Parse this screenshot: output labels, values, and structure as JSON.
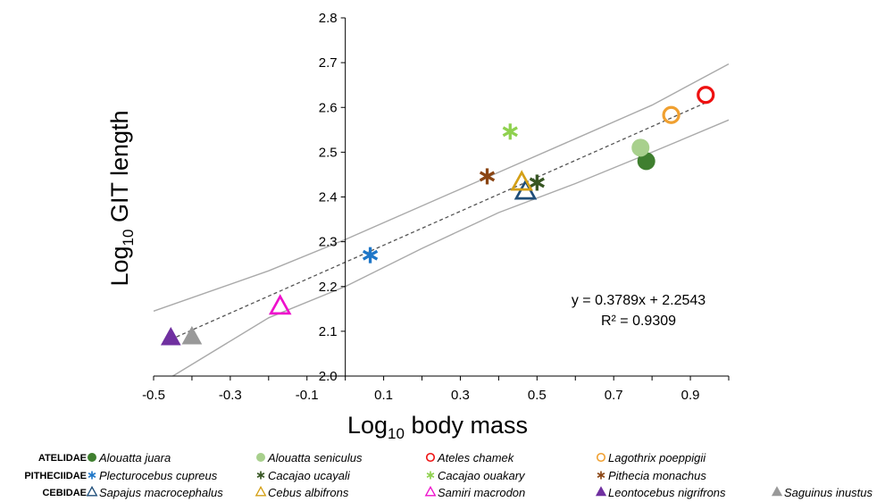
{
  "chart_data": {
    "type": "scatter",
    "xlabel": "Log10 body mass",
    "ylabel": "Log10 GIT length",
    "xlabel_parts": {
      "base": "Log",
      "sub": "10",
      "rest": " body mass"
    },
    "ylabel_parts": {
      "base": "Log",
      "sub": "10",
      "rest": " GIT length"
    },
    "xlim": [
      -0.5,
      1.0
    ],
    "ylim": [
      2.0,
      2.8
    ],
    "x_ticks": [
      -0.5,
      -0.3,
      -0.1,
      0.1,
      0.3,
      0.5,
      0.7,
      0.9
    ],
    "x_tick_labels": [
      "-0.5",
      "-0.3",
      "-0.1",
      "0.1",
      "0.3",
      "0.5",
      "0.7",
      "0.9"
    ],
    "y_ticks": [
      2.0,
      2.1,
      2.2,
      2.3,
      2.4,
      2.5,
      2.6,
      2.7,
      2.8
    ],
    "y_tick_labels": [
      "2.0",
      "2.1",
      "2.2",
      "2.3",
      "2.4",
      "2.5",
      "2.6",
      "2.7",
      "2.8"
    ],
    "axis_crossing_x": 0.0,
    "grid": false,
    "legend_position": "bottom",
    "regression": {
      "slope": 0.3789,
      "intercept": 2.2543,
      "equation_label": "y = 0.3789x + 2.2543",
      "r2_label": "R² = 0.9309",
      "line_style": "dashed",
      "color": "#555555"
    },
    "confidence_band": {
      "color": "#aaaaaa",
      "upper": [
        [
          -0.5,
          2.145
        ],
        [
          -0.2,
          2.235
        ],
        [
          0.0,
          2.305
        ],
        [
          0.2,
          2.38
        ],
        [
          0.4,
          2.455
        ],
        [
          0.6,
          2.53
        ],
        [
          0.8,
          2.605
        ],
        [
          1.0,
          2.697
        ]
      ],
      "lower": [
        [
          -0.45,
          2.0
        ],
        [
          -0.2,
          2.13
        ],
        [
          0.0,
          2.2
        ],
        [
          0.2,
          2.285
        ],
        [
          0.4,
          2.365
        ],
        [
          0.6,
          2.43
        ],
        [
          0.8,
          2.5
        ],
        [
          1.0,
          2.572
        ]
      ]
    },
    "legend_groups": [
      {
        "family": "ATELIDAE",
        "species": [
          "Alouatta juara",
          "Alouatta seniculus",
          "Ateles chamek",
          "Lagothrix poeppigii"
        ]
      },
      {
        "family": "PITHECIIDAE",
        "species": [
          "Plecturocebus cupreus",
          "Cacajao ucayali",
          "Cacajao ouakary",
          "Pithecia monachus"
        ]
      },
      {
        "family": "CEBIDAE",
        "species": [
          "Sapajus macrocephalus",
          "Cebus albifrons",
          "Samiri macrodon",
          "Leontocebus nigrifrons",
          "Saguinus inustus"
        ]
      }
    ],
    "series": [
      {
        "name": "Alouatta juara",
        "marker": "circle-filled",
        "color": "#3f7f2f",
        "points": [
          [
            0.785,
            2.48
          ]
        ]
      },
      {
        "name": "Alouatta seniculus",
        "marker": "circle-filled",
        "color": "#a8d08d",
        "points": [
          [
            0.77,
            2.51
          ]
        ]
      },
      {
        "name": "Ateles chamek",
        "marker": "circle-open",
        "color": "#ee1111",
        "points": [
          [
            0.94,
            2.628
          ]
        ]
      },
      {
        "name": "Lagothrix poeppigii",
        "marker": "circle-open",
        "color": "#f0a030",
        "points": [
          [
            0.85,
            2.583
          ]
        ]
      },
      {
        "name": "Plecturocebus cupreus",
        "marker": "asterisk",
        "color": "#1f77c8",
        "points": [
          [
            0.065,
            2.27
          ]
        ]
      },
      {
        "name": "Cacajao ucayali",
        "marker": "asterisk",
        "color": "#375623",
        "points": [
          [
            0.5,
            2.432
          ]
        ]
      },
      {
        "name": "Cacajao ouakary",
        "marker": "asterisk",
        "color": "#8fd14f",
        "points": [
          [
            0.43,
            2.546
          ]
        ]
      },
      {
        "name": "Pithecia monachus",
        "marker": "asterisk",
        "color": "#8b4513",
        "points": [
          [
            0.37,
            2.446
          ]
        ]
      },
      {
        "name": "Sapajus macrocephalus",
        "marker": "triangle-open",
        "color": "#1f4e79",
        "points": [
          [
            0.47,
            2.412
          ]
        ]
      },
      {
        "name": "Cebus albifrons",
        "marker": "triangle-open",
        "color": "#d4a017",
        "points": [
          [
            0.46,
            2.432
          ]
        ]
      },
      {
        "name": "Samiri macrodon",
        "marker": "triangle-open",
        "color": "#ee11cc",
        "points": [
          [
            -0.17,
            2.155
          ]
        ]
      },
      {
        "name": "Leontocebus nigrifrons",
        "marker": "triangle-filled",
        "color": "#7030a0",
        "points": [
          [
            -0.455,
            2.085
          ]
        ]
      },
      {
        "name": "Saguinus inustus",
        "marker": "triangle-filled",
        "color": "#999999",
        "points": [
          [
            -0.4,
            2.087
          ]
        ]
      }
    ]
  }
}
